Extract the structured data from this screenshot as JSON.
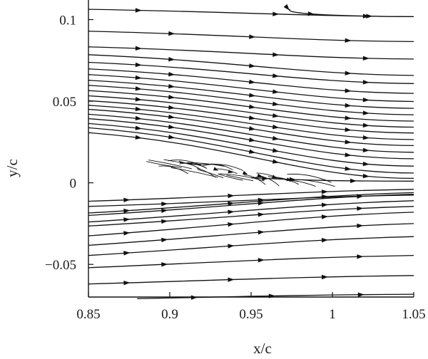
{
  "chart_data": {
    "type": "streamline",
    "title": "",
    "xlabel": "x/c",
    "ylabel": "y/c",
    "xlim": [
      0.85,
      1.05
    ],
    "ylim": [
      -0.07,
      0.112
    ],
    "x_ticks": [
      {
        "value": 0.85,
        "label": "0.85"
      },
      {
        "value": 0.9,
        "label": "0.9"
      },
      {
        "value": 0.95,
        "label": "0.95"
      },
      {
        "value": 1.0,
        "label": "1"
      },
      {
        "value": 1.05,
        "label": "1.05"
      }
    ],
    "y_ticks": [
      {
        "value": 0.1,
        "label": "0.1"
      },
      {
        "value": 0.05,
        "label": "0.05"
      },
      {
        "value": 0.0,
        "label": "0"
      },
      {
        "value": -0.05,
        "label": "−0.05"
      }
    ],
    "grid": false,
    "legend": "none",
    "colors": {
      "line": "#111111",
      "background": "#ffffff"
    },
    "upper_streamlines": [
      {
        "points": [
          [
            0.85,
            0.1063
          ],
          [
            1.05,
            0.1018
          ]
        ]
      },
      {
        "points": [
          [
            0.85,
            0.0929
          ],
          [
            1.05,
            0.0865
          ]
        ]
      },
      {
        "points": [
          [
            0.85,
            0.0833
          ],
          [
            1.05,
            0.0758
          ]
        ]
      },
      {
        "points": [
          [
            0.85,
            0.0785
          ],
          [
            1.05,
            0.0658
          ]
        ]
      },
      {
        "points": [
          [
            0.85,
            0.0738
          ],
          [
            1.05,
            0.0608
          ]
        ]
      },
      {
        "points": [
          [
            0.85,
            0.0698
          ],
          [
            1.05,
            0.0548
          ]
        ]
      },
      {
        "points": [
          [
            0.85,
            0.0663
          ],
          [
            1.05,
            0.0498
          ]
        ]
      },
      {
        "points": [
          [
            0.85,
            0.0628
          ],
          [
            1.05,
            0.0456
          ]
        ]
      },
      {
        "points": [
          [
            0.85,
            0.0597
          ],
          [
            1.05,
            0.0417
          ]
        ]
      },
      {
        "points": [
          [
            0.85,
            0.0565
          ],
          [
            1.05,
            0.0378
          ]
        ]
      },
      {
        "points": [
          [
            0.85,
            0.0533
          ],
          [
            1.05,
            0.0341
          ]
        ]
      },
      {
        "points": [
          [
            0.85,
            0.0503
          ],
          [
            1.05,
            0.0305
          ]
        ]
      },
      {
        "points": [
          [
            0.85,
            0.0475
          ],
          [
            1.05,
            0.0265
          ]
        ]
      },
      {
        "points": [
          [
            0.85,
            0.045
          ],
          [
            1.05,
            0.0228
          ]
        ]
      },
      {
        "points": [
          [
            0.85,
            0.042
          ],
          [
            1.05,
            0.0187
          ]
        ]
      },
      {
        "points": [
          [
            0.85,
            0.0393
          ],
          [
            1.05,
            0.0147
          ]
        ]
      },
      {
        "points": [
          [
            0.85,
            0.0363
          ],
          [
            1.05,
            0.0102
          ]
        ]
      },
      {
        "points": [
          [
            0.85,
            0.0337
          ],
          [
            1.05,
            0.006
          ]
        ]
      },
      {
        "points": [
          [
            0.85,
            0.0307
          ],
          [
            1.05,
            0.0027
          ]
        ]
      },
      {
        "points": [
          [
            0.95,
            0.003
          ],
          [
            1.05,
            0.001
          ]
        ]
      },
      {
        "points": [
          [
            0.974,
            0.1063
          ],
          [
            1.05,
            0.1018
          ]
        ]
      }
    ],
    "lower_streamlines": [
      {
        "points": [
          [
            0.85,
            -0.0113
          ],
          [
            1.05,
            -0.004
          ]
        ]
      },
      {
        "points": [
          [
            0.85,
            -0.0145
          ],
          [
            1.05,
            -0.0075
          ]
        ]
      },
      {
        "points": [
          [
            0.85,
            -0.0185
          ],
          [
            1.05,
            -0.006
          ]
        ]
      },
      {
        "points": [
          [
            0.85,
            -0.02
          ],
          [
            1.05,
            -0.007
          ]
        ]
      },
      {
        "points": [
          [
            0.85,
            -0.024
          ],
          [
            1.05,
            -0.011
          ]
        ]
      },
      {
        "points": [
          [
            0.85,
            -0.0265
          ],
          [
            1.05,
            -0.0145
          ]
        ]
      },
      {
        "points": [
          [
            0.85,
            -0.0325
          ],
          [
            1.05,
            -0.018
          ]
        ]
      },
      {
        "points": [
          [
            0.85,
            -0.0383
          ],
          [
            1.05,
            -0.025
          ]
        ]
      },
      {
        "points": [
          [
            0.85,
            -0.0445
          ],
          [
            1.05,
            -0.033
          ]
        ]
      },
      {
        "points": [
          [
            0.85,
            -0.052
          ],
          [
            1.05,
            -0.0445
          ]
        ]
      },
      {
        "points": [
          [
            0.85,
            -0.062
          ],
          [
            1.05,
            -0.0568
          ]
        ]
      },
      {
        "points": [
          [
            0.88,
            -0.071
          ],
          [
            1.05,
            -0.0683
          ]
        ]
      }
    ]
  }
}
